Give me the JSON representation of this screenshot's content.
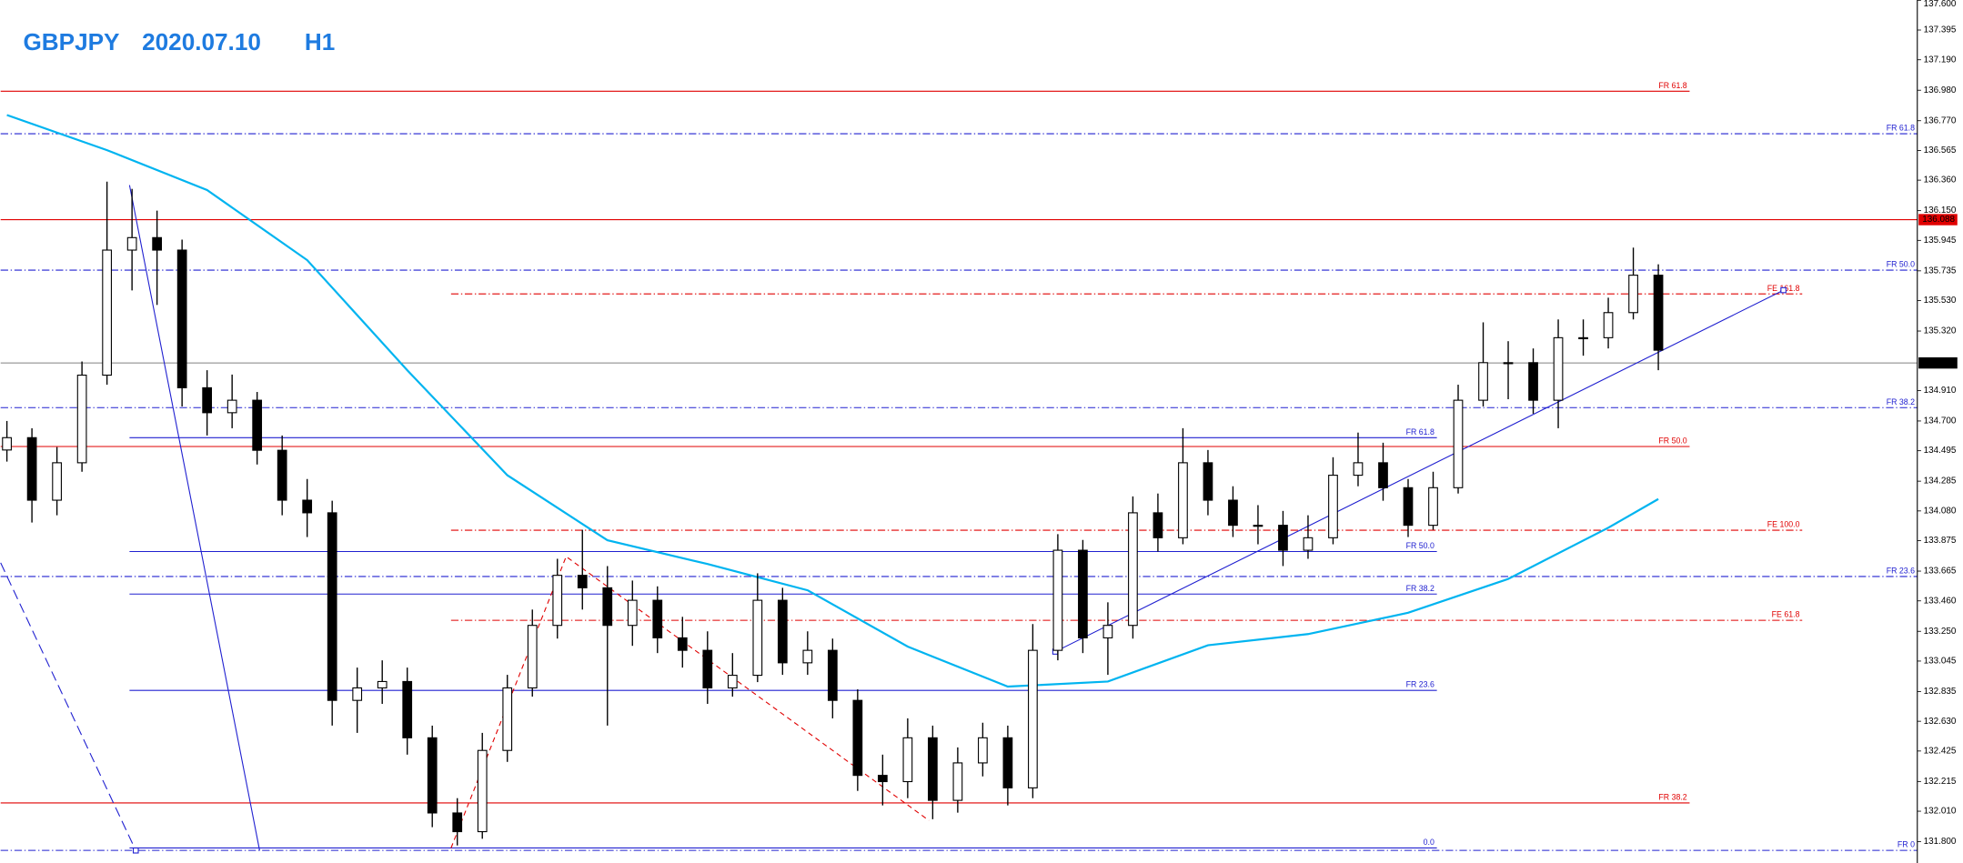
{
  "chart_data": {
    "type": "candlestick",
    "symbol": "GBPJPY",
    "date": "2020.07.10",
    "timeframe": "H1",
    "ylim": [
      131.653,
      137.602
    ],
    "yticks": [
      {
        "value": 137.6,
        "label": "137.600"
      },
      137.395,
      {
        "value": 137.19,
        "label": "137.190"
      },
      {
        "value": 136.98,
        "label": "136.980"
      },
      {
        "value": 136.77,
        "label": "136.770"
      },
      136.565,
      {
        "value": 136.36,
        "label": "136.360"
      },
      {
        "value": 136.15,
        "label": "136.150"
      },
      135.945,
      135.735,
      {
        "value": 135.53,
        "label": "135.530"
      },
      {
        "value": 135.32,
        "label": "135.320"
      },
      {
        "value": 134.91,
        "label": "134.910"
      },
      {
        "value": 134.7,
        "label": "134.700"
      },
      134.495,
      134.285,
      {
        "value": 134.08,
        "label": "134.080"
      },
      133.875,
      133.665,
      {
        "value": 133.46,
        "label": "133.460"
      },
      {
        "value": 133.25,
        "label": "133.250"
      },
      133.045,
      132.835,
      {
        "value": 132.63,
        "label": "132.630"
      },
      132.425,
      132.215,
      {
        "value": 132.01,
        "label": "132.010"
      },
      {
        "value": 131.8,
        "label": "131.800"
      }
    ],
    "bull_color": "#ffffff",
    "bear_color": "#000000",
    "open": [
      134.5,
      134.585,
      134.154,
      134.412,
      135.016,
      135.878,
      135.964,
      135.878,
      134.929,
      134.757,
      134.843,
      134.498,
      134.154,
      134.067,
      132.774,
      132.86,
      132.904,
      132.516,
      131.998,
      131.869,
      132.429,
      132.86,
      133.291,
      133.636,
      133.55,
      133.291,
      133.464,
      133.205,
      133.119,
      132.86,
      132.947,
      133.464,
      133.033,
      133.119,
      132.774,
      132.257,
      132.214,
      132.516,
      132.085,
      132.343,
      132.516,
      132.171,
      133.119,
      133.809,
      133.205,
      133.291,
      134.067,
      133.895,
      134.412,
      134.154,
      133.981,
      133.981,
      133.809,
      133.895,
      134.326,
      134.412,
      134.24,
      133.981,
      134.24,
      134.843,
      135.102,
      135.102,
      134.843,
      135.274,
      135.274,
      135.447,
      135.705
    ],
    "high": [
      134.7,
      134.65,
      134.52,
      135.11,
      136.35,
      136.3,
      136.15,
      135.95,
      135.05,
      135.02,
      134.9,
      134.6,
      134.3,
      134.15,
      133.0,
      133.05,
      133.0,
      132.6,
      132.1,
      132.55,
      132.95,
      133.4,
      133.75,
      133.95,
      133.7,
      133.6,
      133.56,
      133.35,
      133.25,
      133.1,
      133.65,
      133.55,
      133.25,
      133.2,
      132.85,
      132.4,
      132.65,
      132.6,
      132.45,
      132.62,
      132.6,
      133.3,
      133.92,
      133.88,
      133.45,
      134.18,
      134.2,
      134.65,
      134.5,
      134.25,
      134.12,
      134.08,
      134.05,
      134.45,
      134.62,
      134.55,
      134.3,
      134.35,
      134.95,
      135.38,
      135.25,
      135.2,
      135.4,
      135.4,
      135.55,
      135.895,
      135.78
    ],
    "low": [
      134.42,
      134.0,
      134.05,
      134.35,
      134.95,
      135.6,
      135.5,
      134.8,
      134.6,
      134.65,
      134.4,
      134.05,
      133.9,
      132.6,
      132.55,
      132.75,
      132.4,
      131.9,
      131.774,
      131.82,
      132.35,
      132.8,
      133.2,
      133.4,
      132.6,
      133.15,
      133.1,
      133.0,
      132.75,
      132.8,
      132.9,
      132.95,
      132.95,
      132.65,
      132.15,
      132.05,
      132.1,
      131.955,
      132.0,
      132.25,
      132.05,
      132.1,
      133.05,
      133.1,
      132.95,
      133.2,
      133.8,
      133.85,
      134.05,
      133.9,
      133.85,
      133.7,
      133.75,
      133.85,
      134.25,
      134.15,
      133.9,
      133.95,
      134.2,
      134.8,
      134.85,
      134.75,
      134.65,
      135.15,
      135.2,
      135.4,
      135.05
    ],
    "close": [
      134.585,
      134.154,
      134.412,
      135.016,
      135.878,
      135.964,
      135.878,
      134.929,
      134.757,
      134.843,
      134.498,
      134.154,
      134.067,
      132.774,
      132.86,
      132.904,
      132.516,
      131.998,
      131.869,
      132.429,
      132.86,
      133.291,
      133.636,
      133.55,
      133.291,
      133.464,
      133.205,
      133.119,
      132.86,
      132.947,
      133.464,
      133.033,
      133.119,
      132.774,
      132.257,
      132.214,
      132.516,
      132.085,
      132.343,
      132.516,
      132.171,
      133.119,
      133.809,
      133.205,
      133.291,
      134.067,
      133.895,
      134.412,
      134.154,
      133.981,
      133.981,
      133.809,
      133.895,
      134.326,
      134.412,
      134.24,
      133.981,
      134.24,
      134.843,
      135.102,
      135.102,
      134.843,
      135.274,
      135.274,
      135.447,
      135.705,
      135.188
    ],
    "moving_average": {
      "color": "#00b4f0",
      "x": [
        0,
        4,
        8,
        12,
        16,
        20,
        24,
        28,
        32,
        36,
        40,
        44,
        48,
        52,
        56,
        60,
        64,
        66
      ],
      "values": [
        136.809,
        136.567,
        136.292,
        135.809,
        135.05,
        134.326,
        133.878,
        133.714,
        133.533,
        133.145,
        132.869,
        132.904,
        133.154,
        133.231,
        133.378,
        133.611,
        133.964,
        134.162
      ]
    },
    "price_markers": [
      {
        "value": 136.088,
        "color": "#e00000"
      },
      {
        "value": 135.1,
        "label": "135.100",
        "color": "#000000"
      }
    ],
    "levels": [
      {
        "label": "FR 61.8",
        "value": 136.973,
        "color": "#e00000",
        "style": "solid"
      },
      {
        "label": "FR 61.8",
        "value": 136.68,
        "color": "#2020d0",
        "style": "dashdot"
      },
      {
        "label": "FR 50.0",
        "value": 135.74,
        "color": "#2020d0",
        "style": "dashdot"
      },
      {
        "label": "FE 161.8",
        "value": 135.576,
        "color": "#e00000",
        "style": "dashdot"
      },
      {
        "label": "FR 38.2",
        "value": 134.792,
        "color": "#2020d0",
        "style": "dashdot"
      },
      {
        "label": "FR 61.8",
        "value": 134.585,
        "color": "#2020d0",
        "style": "solid"
      },
      {
        "label": "FR 50.0",
        "value": 134.524,
        "color": "#e00000",
        "style": "solid"
      },
      {
        "label": "FE 100.0",
        "value": 133.947,
        "color": "#e00000",
        "style": "dashdot"
      },
      {
        "label": "FR 50.0",
        "value": 133.8,
        "color": "#2020d0",
        "style": "solid"
      },
      {
        "label": "FR 23.6",
        "value": 133.628,
        "color": "#2020d0",
        "style": "dashdot"
      },
      {
        "label": "FR 38.2",
        "value": 133.507,
        "color": "#2020d0",
        "style": "solid"
      },
      {
        "label": "FE 61.8",
        "value": 133.326,
        "color": "#e00000",
        "style": "dashdot"
      },
      {
        "label": "FR 23.6",
        "value": 132.843,
        "color": "#2020d0",
        "style": "solid"
      },
      {
        "label": "FR 38.2",
        "value": 132.067,
        "color": "#e00000",
        "style": "solid"
      },
      {
        "label": "0.0",
        "value": 131.757,
        "color": "#2020d0",
        "style": "solid"
      },
      {
        "label": "FR 0",
        "value": 131.74,
        "color": "#2020d0",
        "style": "dashdot"
      }
    ]
  }
}
